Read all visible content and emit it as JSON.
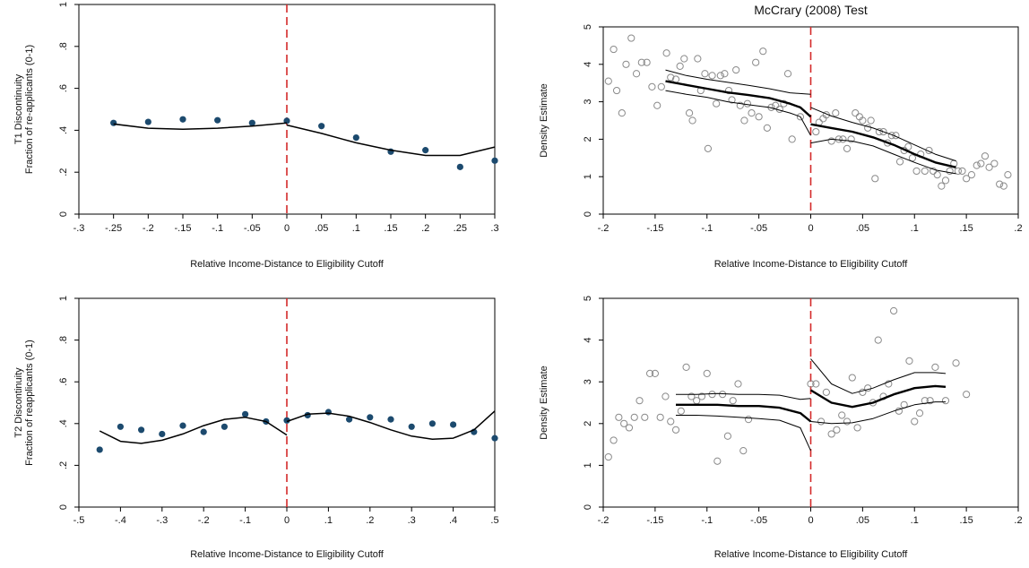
{
  "colors": {
    "cutoff": "#d42a2a",
    "dots": "#1c4a6e",
    "line": "#000000",
    "hollow": "#8a8a8a"
  },
  "chart_data": [
    {
      "id": "t1",
      "type": "scatter",
      "title": "",
      "xlabel": "Relative Income-Distance to Eligibility Cutoff",
      "ylabel_lines": [
        "T1 Discontinuity",
        "Fraction of re-applicants (0-1)"
      ],
      "xlim": [
        -0.3,
        0.3
      ],
      "ylim": [
        0,
        1
      ],
      "xticks": [
        "-.3",
        "-.25",
        "-.2",
        "-.15",
        "-.1",
        "-.05",
        "0",
        ".05",
        ".1",
        ".15",
        ".2",
        ".25",
        ".3"
      ],
      "yticks": [
        "0",
        ".2",
        ".4",
        ".6",
        ".8",
        "1"
      ],
      "cutoff_x": 0,
      "points": [
        [
          -0.25,
          0.435
        ],
        [
          -0.2,
          0.44
        ],
        [
          -0.15,
          0.452
        ],
        [
          -0.1,
          0.448
        ],
        [
          -0.05,
          0.435
        ],
        [
          0,
          0.445
        ],
        [
          0.05,
          0.42
        ],
        [
          0.1,
          0.365
        ],
        [
          0.15,
          0.298
        ],
        [
          0.2,
          0.305
        ],
        [
          0.25,
          0.225
        ],
        [
          0.3,
          0.255
        ]
      ],
      "fit_left": [
        [
          -0.25,
          0.43
        ],
        [
          -0.2,
          0.41
        ],
        [
          -0.15,
          0.405
        ],
        [
          -0.1,
          0.41
        ],
        [
          -0.05,
          0.42
        ],
        [
          0,
          0.435
        ]
      ],
      "fit_right": [
        [
          0,
          0.425
        ],
        [
          0.05,
          0.385
        ],
        [
          0.1,
          0.34
        ],
        [
          0.15,
          0.305
        ],
        [
          0.2,
          0.28
        ],
        [
          0.25,
          0.28
        ],
        [
          0.3,
          0.32
        ]
      ]
    },
    {
      "id": "mccrary-top",
      "type": "scatter",
      "title": "McCrary (2008) Test",
      "xlabel": "Relative Income-Distance to Eligibility Cutoff",
      "ylabel": "Density Estimate",
      "xlim": [
        -0.2,
        0.2
      ],
      "ylim": [
        0,
        5
      ],
      "xticks": [
        "-.2",
        "-.15",
        "-.1",
        "-.05",
        "0",
        ".05",
        ".1",
        ".15",
        ".2"
      ],
      "yticks": [
        "0",
        "1",
        "2",
        "3",
        "4",
        "5"
      ],
      "cutoff_x": 0,
      "points": [
        [
          -0.195,
          3.55
        ],
        [
          -0.19,
          4.4
        ],
        [
          -0.187,
          3.3
        ],
        [
          -0.182,
          2.7
        ],
        [
          -0.178,
          4.0
        ],
        [
          -0.173,
          4.7
        ],
        [
          -0.168,
          3.75
        ],
        [
          -0.163,
          4.05
        ],
        [
          -0.158,
          4.05
        ],
        [
          -0.153,
          3.4
        ],
        [
          -0.148,
          2.9
        ],
        [
          -0.144,
          3.4
        ],
        [
          -0.139,
          4.3
        ],
        [
          -0.135,
          3.65
        ],
        [
          -0.13,
          3.6
        ],
        [
          -0.126,
          3.95
        ],
        [
          -0.122,
          4.15
        ],
        [
          -0.117,
          2.7
        ],
        [
          -0.114,
          2.5
        ],
        [
          -0.109,
          4.15
        ],
        [
          -0.106,
          3.3
        ],
        [
          -0.102,
          3.75
        ],
        [
          -0.099,
          1.75
        ],
        [
          -0.095,
          3.7
        ],
        [
          -0.091,
          2.95
        ],
        [
          -0.087,
          3.7
        ],
        [
          -0.083,
          3.75
        ],
        [
          -0.079,
          3.3
        ],
        [
          -0.076,
          3.05
        ],
        [
          -0.072,
          3.85
        ],
        [
          -0.068,
          2.9
        ],
        [
          -0.064,
          2.5
        ],
        [
          -0.061,
          2.95
        ],
        [
          -0.057,
          2.7
        ],
        [
          -0.053,
          4.05
        ],
        [
          -0.05,
          2.6
        ],
        [
          -0.046,
          4.35
        ],
        [
          -0.042,
          2.3
        ],
        [
          -0.038,
          2.85
        ],
        [
          -0.034,
          2.9
        ],
        [
          -0.03,
          2.8
        ],
        [
          -0.026,
          2.95
        ],
        [
          -0.022,
          3.75
        ],
        [
          -0.018,
          2.0
        ],
        [
          -0.01,
          2.6
        ],
        [
          0.005,
          2.2
        ],
        [
          0.008,
          2.45
        ],
        [
          0.012,
          2.55
        ],
        [
          0.015,
          2.65
        ],
        [
          0.02,
          1.95
        ],
        [
          0.024,
          2.7
        ],
        [
          0.027,
          2.0
        ],
        [
          0.031,
          2.0
        ],
        [
          0.035,
          1.75
        ],
        [
          0.039,
          2.0
        ],
        [
          0.043,
          2.7
        ],
        [
          0.047,
          2.6
        ],
        [
          0.05,
          2.5
        ],
        [
          0.055,
          2.3
        ],
        [
          0.058,
          2.5
        ],
        [
          0.062,
          0.95
        ],
        [
          0.066,
          2.2
        ],
        [
          0.07,
          2.2
        ],
        [
          0.074,
          1.9
        ],
        [
          0.078,
          2.1
        ],
        [
          0.082,
          2.1
        ],
        [
          0.086,
          1.4
        ],
        [
          0.09,
          1.7
        ],
        [
          0.094,
          1.8
        ],
        [
          0.098,
          1.5
        ],
        [
          0.102,
          1.15
        ],
        [
          0.106,
          1.6
        ],
        [
          0.11,
          1.15
        ],
        [
          0.114,
          1.7
        ],
        [
          0.118,
          1.15
        ],
        [
          0.122,
          1.05
        ],
        [
          0.126,
          0.75
        ],
        [
          0.13,
          0.9
        ],
        [
          0.134,
          1.15
        ],
        [
          0.138,
          1.35
        ],
        [
          0.142,
          1.15
        ],
        [
          0.146,
          1.15
        ],
        [
          0.15,
          0.95
        ],
        [
          0.155,
          1.05
        ],
        [
          0.16,
          1.3
        ],
        [
          0.164,
          1.35
        ],
        [
          0.168,
          1.55
        ],
        [
          0.172,
          1.25
        ],
        [
          0.177,
          1.35
        ],
        [
          0.182,
          0.8
        ],
        [
          0.186,
          0.75
        ],
        [
          0.19,
          1.05
        ]
      ],
      "fit_left": [
        [
          -0.14,
          3.55
        ],
        [
          -0.12,
          3.45
        ],
        [
          -0.1,
          3.35
        ],
        [
          -0.08,
          3.25
        ],
        [
          -0.06,
          3.18
        ],
        [
          -0.04,
          3.1
        ],
        [
          -0.02,
          2.95
        ],
        [
          -0.01,
          2.85
        ],
        [
          0,
          2.6
        ]
      ],
      "ci_left_upper": [
        [
          -0.14,
          3.85
        ],
        [
          -0.12,
          3.7
        ],
        [
          -0.1,
          3.6
        ],
        [
          -0.08,
          3.52
        ],
        [
          -0.06,
          3.44
        ],
        [
          -0.04,
          3.35
        ],
        [
          -0.02,
          3.24
        ],
        [
          0,
          3.2
        ]
      ],
      "ci_left_lower": [
        [
          -0.14,
          3.3
        ],
        [
          -0.12,
          3.2
        ],
        [
          -0.1,
          3.12
        ],
        [
          -0.08,
          3.0
        ],
        [
          -0.06,
          2.92
        ],
        [
          -0.04,
          2.85
        ],
        [
          -0.02,
          2.7
        ],
        [
          -0.01,
          2.6
        ],
        [
          0,
          2.1
        ]
      ],
      "fit_right": [
        [
          0,
          2.4
        ],
        [
          0.02,
          2.3
        ],
        [
          0.04,
          2.2
        ],
        [
          0.06,
          2.05
        ],
        [
          0.08,
          1.85
        ],
        [
          0.1,
          1.6
        ],
        [
          0.12,
          1.38
        ],
        [
          0.14,
          1.25
        ]
      ],
      "ci_right_upper": [
        [
          0,
          2.85
        ],
        [
          0.02,
          2.62
        ],
        [
          0.04,
          2.45
        ],
        [
          0.06,
          2.3
        ],
        [
          0.08,
          2.1
        ],
        [
          0.1,
          1.85
        ],
        [
          0.12,
          1.6
        ],
        [
          0.14,
          1.42
        ]
      ],
      "ci_right_lower": [
        [
          0,
          1.9
        ],
        [
          0.02,
          2.0
        ],
        [
          0.04,
          1.95
        ],
        [
          0.06,
          1.82
        ],
        [
          0.08,
          1.6
        ],
        [
          0.1,
          1.38
        ],
        [
          0.12,
          1.18
        ],
        [
          0.14,
          1.08
        ]
      ]
    },
    {
      "id": "t2",
      "type": "scatter",
      "title": "",
      "xlabel": "Relative Income-Distance to Eligibility Cutoff",
      "ylabel_lines": [
        "T2 Discontinuity",
        "Fraction of reapplicants (0-1)"
      ],
      "xlim": [
        -0.5,
        0.5
      ],
      "ylim": [
        0,
        1
      ],
      "xticks": [
        "-.5",
        "-.4",
        "-.3",
        "-.2",
        "-.1",
        "0",
        ".1",
        ".2",
        ".3",
        ".4",
        ".5"
      ],
      "yticks": [
        "0",
        ".2",
        ".4",
        ".6",
        ".8",
        "1"
      ],
      "cutoff_x": 0,
      "points": [
        [
          -0.45,
          0.275
        ],
        [
          -0.4,
          0.385
        ],
        [
          -0.35,
          0.37
        ],
        [
          -0.3,
          0.35
        ],
        [
          -0.25,
          0.39
        ],
        [
          -0.2,
          0.36
        ],
        [
          -0.15,
          0.385
        ],
        [
          -0.1,
          0.445
        ],
        [
          -0.05,
          0.41
        ],
        [
          0,
          0.415
        ],
        [
          0.05,
          0.44
        ],
        [
          0.1,
          0.455
        ],
        [
          0.15,
          0.42
        ],
        [
          0.2,
          0.43
        ],
        [
          0.25,
          0.42
        ],
        [
          0.3,
          0.385
        ],
        [
          0.35,
          0.4
        ],
        [
          0.4,
          0.395
        ],
        [
          0.45,
          0.36
        ],
        [
          0.5,
          0.33
        ]
      ],
      "fit_left": [
        [
          -0.45,
          0.365
        ],
        [
          -0.4,
          0.315
        ],
        [
          -0.35,
          0.305
        ],
        [
          -0.3,
          0.32
        ],
        [
          -0.25,
          0.35
        ],
        [
          -0.2,
          0.39
        ],
        [
          -0.15,
          0.42
        ],
        [
          -0.1,
          0.43
        ],
        [
          -0.05,
          0.41
        ],
        [
          0,
          0.345
        ]
      ],
      "fit_right": [
        [
          0,
          0.41
        ],
        [
          0.05,
          0.445
        ],
        [
          0.1,
          0.45
        ],
        [
          0.15,
          0.435
        ],
        [
          0.2,
          0.405
        ],
        [
          0.25,
          0.37
        ],
        [
          0.3,
          0.34
        ],
        [
          0.35,
          0.325
        ],
        [
          0.4,
          0.33
        ],
        [
          0.45,
          0.37
        ],
        [
          0.5,
          0.46
        ]
      ]
    },
    {
      "id": "mccrary-bottom",
      "type": "scatter",
      "title": "",
      "xlabel": "Relative Income-Distance to Eligibility Cutoff",
      "ylabel": "Density Estimate",
      "xlim": [
        -0.2,
        0.2
      ],
      "ylim": [
        0,
        5
      ],
      "xticks": [
        "-.2",
        "-.15",
        "-.1",
        "-.05",
        "0",
        ".05",
        ".1",
        ".15",
        ".2"
      ],
      "yticks": [
        "0",
        "1",
        "2",
        "3",
        "4",
        "5"
      ],
      "cutoff_x": 0,
      "points": [
        [
          -0.195,
          1.2
        ],
        [
          -0.19,
          1.6
        ],
        [
          -0.185,
          2.15
        ],
        [
          -0.18,
          2.0
        ],
        [
          -0.175,
          1.9
        ],
        [
          -0.17,
          2.15
        ],
        [
          -0.165,
          2.55
        ],
        [
          -0.16,
          2.15
        ],
        [
          -0.155,
          3.2
        ],
        [
          -0.15,
          3.2
        ],
        [
          -0.145,
          2.15
        ],
        [
          -0.14,
          2.65
        ],
        [
          -0.135,
          2.05
        ],
        [
          -0.13,
          1.85
        ],
        [
          -0.125,
          2.3
        ],
        [
          -0.12,
          3.35
        ],
        [
          -0.115,
          2.65
        ],
        [
          -0.11,
          2.55
        ],
        [
          -0.105,
          2.65
        ],
        [
          -0.1,
          3.2
        ],
        [
          -0.095,
          2.7
        ],
        [
          -0.09,
          1.1
        ],
        [
          -0.085,
          2.7
        ],
        [
          -0.08,
          1.7
        ],
        [
          -0.075,
          2.55
        ],
        [
          -0.07,
          2.95
        ],
        [
          -0.065,
          1.35
        ],
        [
          -0.06,
          2.1
        ],
        [
          0.0,
          2.95
        ],
        [
          0.005,
          2.95
        ],
        [
          0.01,
          2.05
        ],
        [
          0.015,
          2.75
        ],
        [
          0.02,
          1.75
        ],
        [
          0.025,
          1.85
        ],
        [
          0.03,
          2.2
        ],
        [
          0.035,
          2.05
        ],
        [
          0.04,
          3.1
        ],
        [
          0.045,
          1.9
        ],
        [
          0.05,
          2.75
        ],
        [
          0.055,
          2.85
        ],
        [
          0.06,
          2.5
        ],
        [
          0.065,
          4.0
        ],
        [
          0.07,
          2.65
        ],
        [
          0.075,
          2.95
        ],
        [
          0.08,
          4.7
        ],
        [
          0.085,
          2.3
        ],
        [
          0.09,
          2.45
        ],
        [
          0.095,
          3.5
        ],
        [
          0.1,
          2.05
        ],
        [
          0.105,
          2.25
        ],
        [
          0.11,
          2.55
        ],
        [
          0.115,
          2.55
        ],
        [
          0.12,
          3.35
        ],
        [
          0.13,
          2.55
        ],
        [
          0.14,
          3.45
        ],
        [
          0.15,
          2.7
        ]
      ],
      "fit_left": [
        [
          -0.13,
          2.45
        ],
        [
          -0.11,
          2.45
        ],
        [
          -0.09,
          2.45
        ],
        [
          -0.07,
          2.42
        ],
        [
          -0.05,
          2.42
        ],
        [
          -0.03,
          2.38
        ],
        [
          -0.01,
          2.25
        ],
        [
          0,
          2.05
        ]
      ],
      "ci_left_upper": [
        [
          -0.13,
          2.7
        ],
        [
          -0.11,
          2.7
        ],
        [
          -0.09,
          2.72
        ],
        [
          -0.07,
          2.7
        ],
        [
          -0.05,
          2.7
        ],
        [
          -0.03,
          2.68
        ],
        [
          -0.01,
          2.58
        ],
        [
          0,
          2.6
        ]
      ],
      "ci_left_lower": [
        [
          -0.13,
          2.2
        ],
        [
          -0.11,
          2.2
        ],
        [
          -0.09,
          2.18
        ],
        [
          -0.07,
          2.15
        ],
        [
          -0.05,
          2.12
        ],
        [
          -0.03,
          2.08
        ],
        [
          -0.01,
          1.9
        ],
        [
          0,
          1.35
        ]
      ],
      "fit_right": [
        [
          0,
          2.8
        ],
        [
          0.02,
          2.5
        ],
        [
          0.04,
          2.4
        ],
        [
          0.06,
          2.5
        ],
        [
          0.08,
          2.7
        ],
        [
          0.1,
          2.85
        ],
        [
          0.12,
          2.9
        ],
        [
          0.13,
          2.88
        ]
      ],
      "ci_right_upper": [
        [
          0,
          3.55
        ],
        [
          0.02,
          2.95
        ],
        [
          0.04,
          2.72
        ],
        [
          0.06,
          2.85
        ],
        [
          0.08,
          3.05
        ],
        [
          0.1,
          3.22
        ],
        [
          0.12,
          3.22
        ],
        [
          0.13,
          3.2
        ]
      ],
      "ci_right_lower": [
        [
          0,
          2.05
        ],
        [
          0.02,
          2.0
        ],
        [
          0.04,
          2.02
        ],
        [
          0.06,
          2.12
        ],
        [
          0.08,
          2.3
        ],
        [
          0.1,
          2.45
        ],
        [
          0.12,
          2.52
        ],
        [
          0.13,
          2.52
        ]
      ]
    }
  ]
}
